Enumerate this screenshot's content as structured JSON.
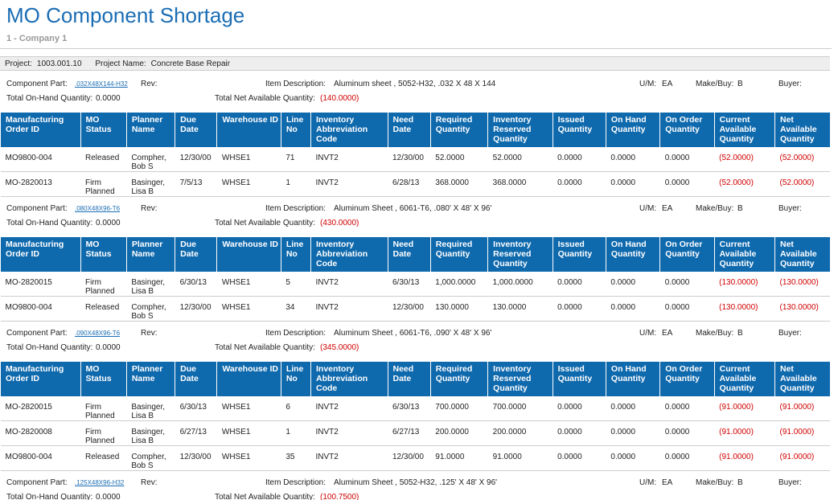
{
  "header": {
    "title": "MO Component Shortage",
    "company": "1 - Company 1"
  },
  "project": {
    "project_label": "Project:",
    "project": "1003.001.10",
    "name_label": "Project Name:",
    "name": "Concrete Base Repair"
  },
  "labels": {
    "part": "Component Part:",
    "rev": "Rev:",
    "description": "Item Description:",
    "um": "U/M:",
    "make_buy": "Make/Buy:",
    "buyer": "Buyer:",
    "on_hand": "Total On-Hand Quantity:",
    "net_available": "Total Net Available Quantity:"
  },
  "columns": [
    "Manufacturing Order ID",
    "MO Status",
    "Planner Name",
    "Due Date",
    "Warehouse ID",
    "Line No",
    "Inventory Abbreviation Code",
    "Need Date",
    "Required Quantity",
    "Inventory Reserved Quantity",
    "Issued Quantity",
    "On Hand Quantity",
    "On Order Quantity",
    "Current Available Quantity",
    "Net Available Quantity"
  ],
  "components": [
    {
      "part": ".032X48X144-H32",
      "description": "Aluminum sheet , 5052-H32, .032 X 48 X 144",
      "um": "EA",
      "make_buy": "B",
      "on_hand": "0.0000",
      "net_available": "(140.0000)",
      "rows": [
        [
          "MO9800-004",
          "Released",
          "Compher, Bob S",
          "12/30/00",
          "WHSE1",
          "71",
          "INVT2",
          "12/30/00",
          "52.0000",
          "52.0000",
          "0.0000",
          "0.0000",
          "0.0000",
          "(52.0000)",
          "(52.0000)"
        ],
        [
          "MO-2820013",
          "Firm Planned",
          "Basinger, Lisa B",
          "7/5/13",
          "WHSE1",
          "1",
          "INVT2",
          "6/28/13",
          "368.0000",
          "368.0000",
          "0.0000",
          "0.0000",
          "0.0000",
          "(52.0000)",
          "(52.0000)"
        ]
      ]
    },
    {
      "part": ".080X48X96-T6",
      "description": "Aluminum Sheet , 6061-T6, .080' X 48' X 96'",
      "um": "EA",
      "make_buy": "B",
      "on_hand": "0.0000",
      "net_available": "(430.0000)",
      "rows": [
        [
          "MO-2820015",
          "Firm Planned",
          "Basinger, Lisa B",
          "6/30/13",
          "WHSE1",
          "5",
          "INVT2",
          "6/30/13",
          "1,000.0000",
          "1,000.0000",
          "0.0000",
          "0.0000",
          "0.0000",
          "(130.0000)",
          "(130.0000)"
        ],
        [
          "MO9800-004",
          "Released",
          "Compher, Bob S",
          "12/30/00",
          "WHSE1",
          "34",
          "INVT2",
          "12/30/00",
          "130.0000",
          "130.0000",
          "0.0000",
          "0.0000",
          "0.0000",
          "(130.0000)",
          "(130.0000)"
        ]
      ]
    },
    {
      "part": ".090X48X96-T6",
      "description": "Aluminum Sheet , 6061-T6, .090' X 48' X 96'",
      "um": "EA",
      "make_buy": "B",
      "on_hand": "0.0000",
      "net_available": "(345.0000)",
      "rows": [
        [
          "MO-2820015",
          "Firm Planned",
          "Basinger, Lisa B",
          "6/30/13",
          "WHSE1",
          "6",
          "INVT2",
          "6/30/13",
          "700.0000",
          "700.0000",
          "0.0000",
          "0.0000",
          "0.0000",
          "(91.0000)",
          "(91.0000)"
        ],
        [
          "MO-2820008",
          "Firm Planned",
          "Basinger, Lisa B",
          "6/27/13",
          "WHSE1",
          "1",
          "INVT2",
          "6/27/13",
          "200.0000",
          "200.0000",
          "0.0000",
          "0.0000",
          "0.0000",
          "(91.0000)",
          "(91.0000)"
        ],
        [
          "MO9800-004",
          "Released",
          "Compher, Bob S",
          "12/30/00",
          "WHSE1",
          "35",
          "INVT2",
          "12/30/00",
          "91.0000",
          "91.0000",
          "0.0000",
          "0.0000",
          "0.0000",
          "(91.0000)",
          "(91.0000)"
        ]
      ]
    },
    {
      "part": ".125X48X96-H32",
      "description": "Aluminum Sheet , 5052-H32, .125' X 48' X 96'",
      "um": "EA",
      "make_buy": "B",
      "on_hand": "0.0000",
      "net_available": "(100.7500)",
      "rows": []
    }
  ]
}
